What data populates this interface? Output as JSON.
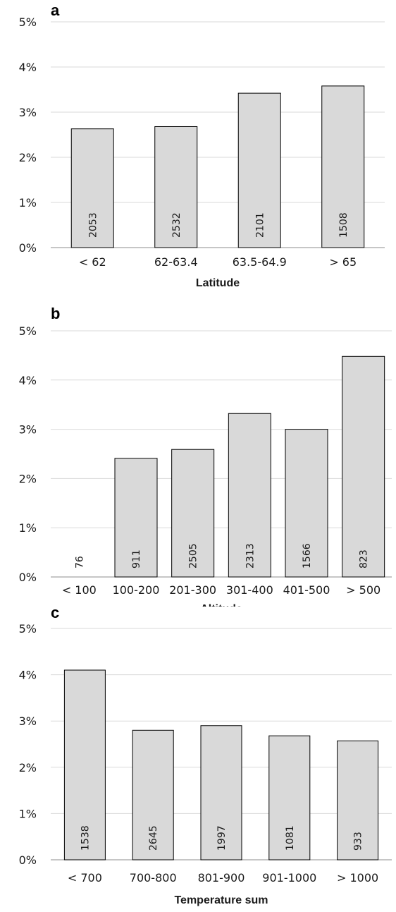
{
  "chart_data": [
    {
      "type": "bar",
      "panel_label": "a",
      "xlabel": "Latitude",
      "ylabel": "",
      "ylim": [
        0,
        5
      ],
      "y_tick_labels": [
        "0%",
        "1%",
        "2%",
        "3%",
        "4%",
        "5%"
      ],
      "categories": [
        "< 62",
        "62-63.4",
        "63.5-64.9",
        "> 65"
      ],
      "values": [
        2.63,
        2.68,
        3.42,
        3.58
      ],
      "data_labels": [
        "2053",
        "2532",
        "2101",
        "1508"
      ],
      "grid": true,
      "bar_color": "#d9d9d9"
    },
    {
      "type": "bar",
      "panel_label": "b",
      "xlabel": "Altitude",
      "ylabel": "",
      "ylim": [
        0,
        5
      ],
      "y_tick_labels": [
        "0%",
        "1%",
        "2%",
        "3%",
        "4%",
        "5%"
      ],
      "categories": [
        "< 100",
        "100-200",
        "201-300",
        "301-400",
        "401-500",
        "> 500"
      ],
      "values": [
        0,
        2.41,
        2.59,
        3.32,
        3.0,
        4.48
      ],
      "data_labels": [
        "76",
        "911",
        "2505",
        "2313",
        "1566",
        "823"
      ],
      "grid": true,
      "bar_color": "#d9d9d9"
    },
    {
      "type": "bar",
      "panel_label": "c",
      "xlabel": "Temperature sum",
      "ylabel": "",
      "ylim": [
        0,
        5
      ],
      "y_tick_labels": [
        "0%",
        "1%",
        "2%",
        "3%",
        "4%",
        "5%"
      ],
      "categories": [
        "< 700",
        "700-800",
        "801-900",
        "901-1000",
        "> 1000"
      ],
      "values": [
        4.1,
        2.8,
        2.9,
        2.68,
        2.57
      ],
      "data_labels": [
        "1538",
        "2645",
        "1997",
        "1081",
        "933"
      ],
      "grid": true,
      "bar_color": "#d9d9d9"
    }
  ]
}
